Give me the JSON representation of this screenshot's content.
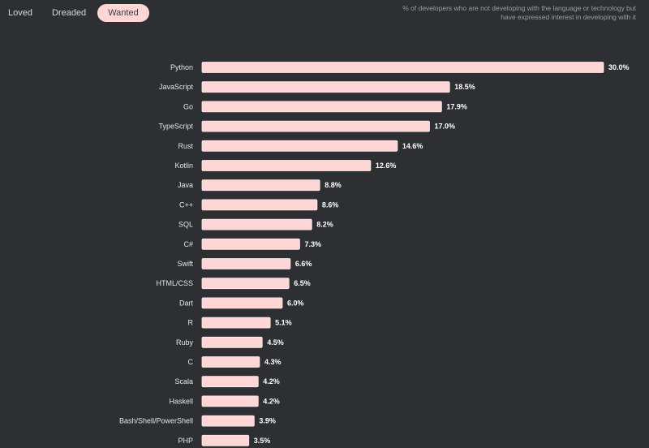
{
  "tabs": [
    {
      "label": "Loved",
      "active": false
    },
    {
      "label": "Dreaded",
      "active": false
    },
    {
      "label": "Wanted",
      "active": true
    }
  ],
  "note": "% of developers who are not developing with the language or technology but have expressed interest in developing with it",
  "colors": {
    "background": "#2d2f33",
    "bar_fill": "#ffd6d6",
    "bar_stroke": "#ffeaea",
    "active_tab": "#ffd6d6"
  },
  "chart_data": {
    "type": "bar",
    "orientation": "horizontal",
    "categories": [
      "Python",
      "JavaScript",
      "Go",
      "TypeScript",
      "Rust",
      "Kotlin",
      "Java",
      "C++",
      "SQL",
      "C#",
      "Swift",
      "HTML/CSS",
      "Dart",
      "R",
      "Ruby",
      "C",
      "Scala",
      "Haskell",
      "Bash/Shell/PowerShell",
      "PHP"
    ],
    "values": [
      30.0,
      18.5,
      17.9,
      17.0,
      14.6,
      12.6,
      8.8,
      8.6,
      8.2,
      7.3,
      6.6,
      6.5,
      6.0,
      5.1,
      4.5,
      4.3,
      4.2,
      4.2,
      3.9,
      3.5
    ],
    "value_labels": [
      "30.0%",
      "18.5%",
      "17.9%",
      "17.0%",
      "14.6%",
      "12.6%",
      "8.8%",
      "8.6%",
      "8.2%",
      "7.3%",
      "6.6%",
      "6.5%",
      "6.0%",
      "5.1%",
      "4.5%",
      "4.3%",
      "4.2%",
      "4.2%",
      "3.9%",
      "3.5%"
    ],
    "xlim": [
      0,
      30
    ],
    "grid": false,
    "legend": "none"
  }
}
